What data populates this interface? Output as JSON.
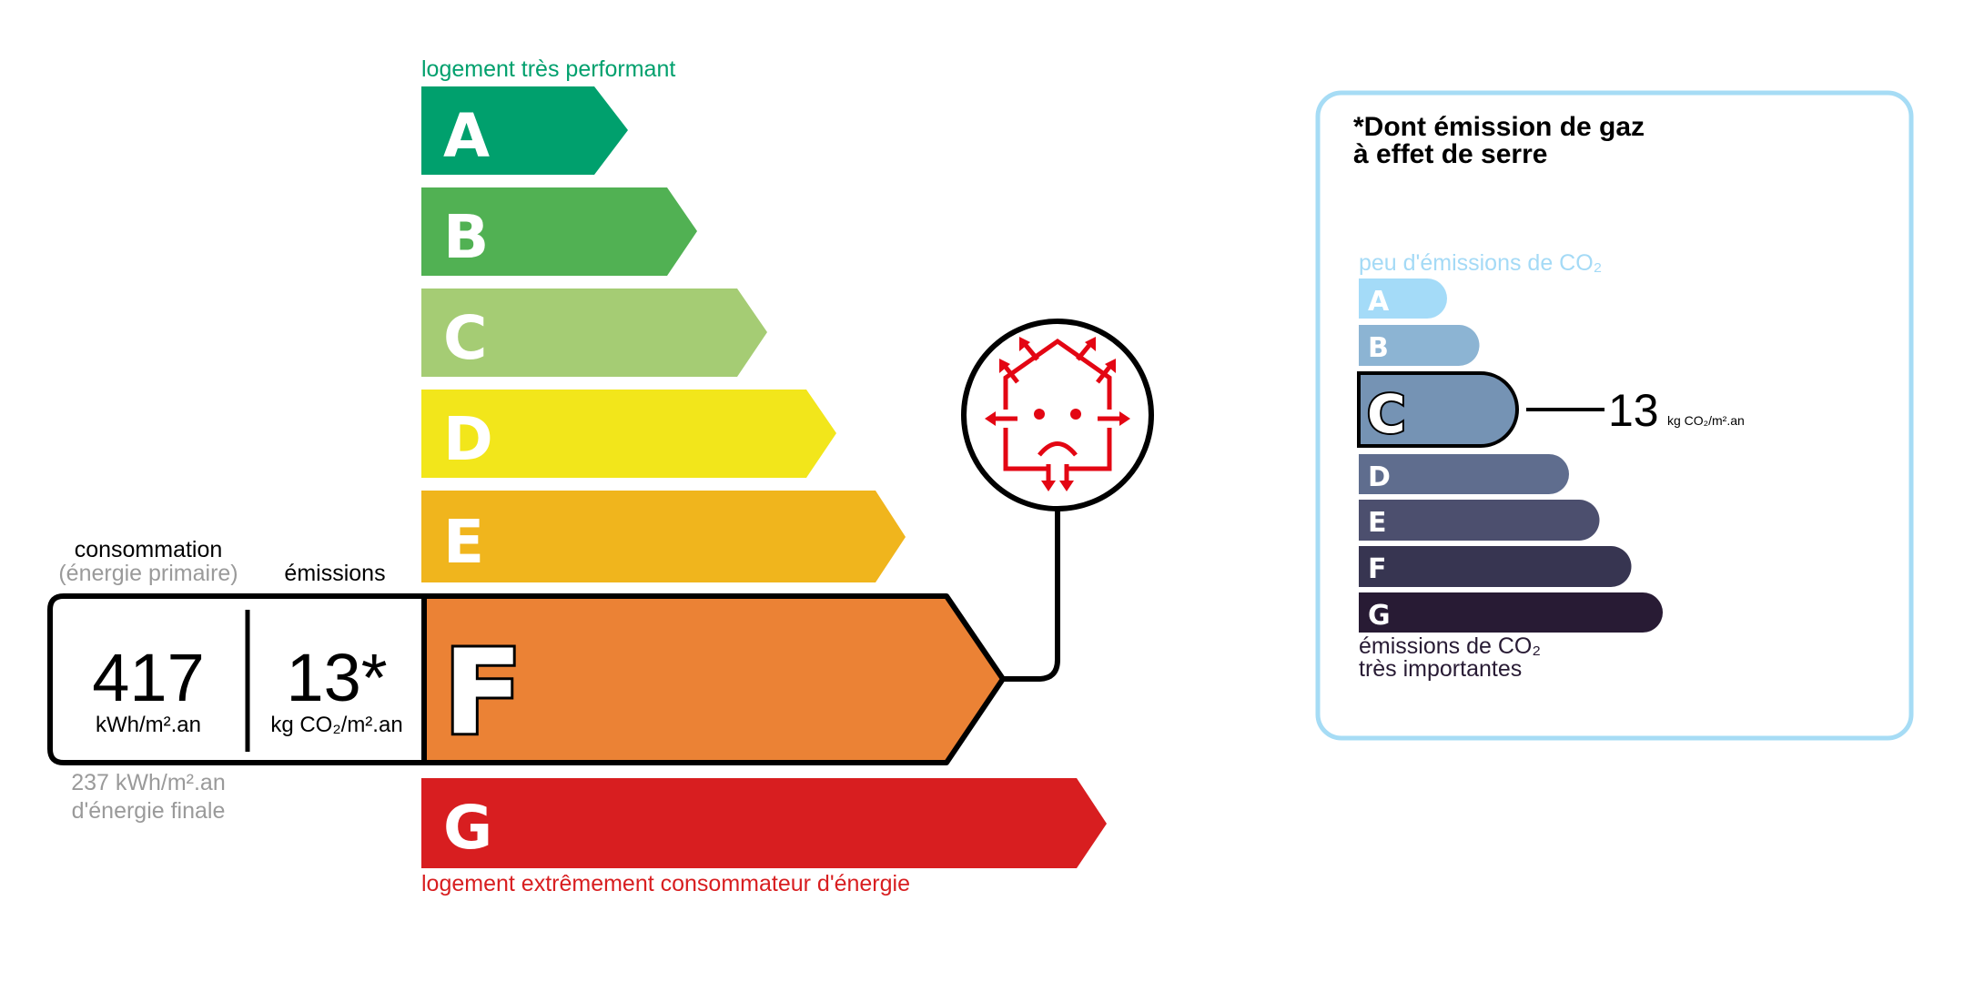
{
  "energy_label": {
    "top_caption": "logement très performant",
    "bottom_caption": "logement extrêmement consommateur d'énergie",
    "classes": [
      {
        "letter": "A",
        "color": "#00a06d"
      },
      {
        "letter": "B",
        "color": "#51b153"
      },
      {
        "letter": "C",
        "color": "#a5cc74"
      },
      {
        "letter": "D",
        "color": "#f2e61b"
      },
      {
        "letter": "E",
        "color": "#f0b51d"
      },
      {
        "letter": "F",
        "color": "#eb8235"
      },
      {
        "letter": "G",
        "color": "#d81e20"
      }
    ],
    "current_class": "F",
    "consumption_label": "consommation",
    "consumption_sub": "(énergie primaire)",
    "emissions_label": "émissions",
    "consumption_value": "417",
    "consumption_unit": "kWh/m².an",
    "emissions_value": "13*",
    "emissions_unit": "kg CO₂/m².an",
    "final_energy_line1": "237 kWh/m².an",
    "final_energy_line2": "d'énergie finale",
    "badge_icon": "sad-house-heat-loss-icon"
  },
  "ghg_panel": {
    "title_line1": "*Dont émission de gaz",
    "title_line2": "à effet de serre",
    "top_caption": "peu d'émissions de CO₂",
    "bottom_caption_line1": "émissions de CO₂",
    "bottom_caption_line2": "très importantes",
    "classes": [
      {
        "letter": "A",
        "color": "#a4dbf8"
      },
      {
        "letter": "B",
        "color": "#8cb4d3"
      },
      {
        "letter": "C",
        "color": "#7593b4"
      },
      {
        "letter": "D",
        "color": "#5f6d8e"
      },
      {
        "letter": "E",
        "color": "#4c4f6e"
      },
      {
        "letter": "F",
        "color": "#373551"
      },
      {
        "letter": "G",
        "color": "#281b34"
      }
    ],
    "current_class": "C",
    "value": "13",
    "unit": "kg CO₂/m².an",
    "border_color": "#a6dcf5"
  }
}
